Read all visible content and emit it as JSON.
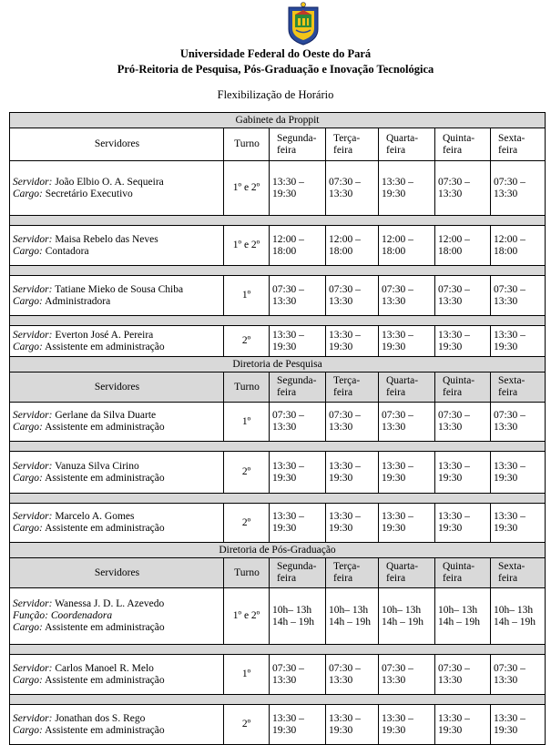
{
  "header": {
    "university": "Universidade Federal do Oeste do Pará",
    "office": "Pró-Reitoria de Pesquisa, Pós-Graduação e Inovação Tecnológica",
    "doc_title": "Flexibilização de Horário"
  },
  "columns": {
    "servers": "Servidores",
    "shift": "Turno",
    "days": [
      [
        "Segunda-",
        "feira"
      ],
      [
        "Terça-",
        "feira"
      ],
      [
        "Quarta-",
        "feira"
      ],
      [
        "Quinta-",
        "feira"
      ],
      [
        "Sexta-",
        "feira"
      ]
    ]
  },
  "sections": [
    {
      "title": "Gabinete da Proppit",
      "staff": [
        {
          "server_label": "Servidor:",
          "name": "João Elbio O. A. Sequeira",
          "role_label": "Cargo:",
          "role": "Secretário Executivo",
          "shift": "1º e 2º",
          "times": [
            [
              "13:30 –",
              "19:30"
            ],
            [
              "07:30 –",
              "13:30"
            ],
            [
              "13:30 –",
              "19:30"
            ],
            [
              "07:30 –",
              "13:30"
            ],
            [
              "07:30 –",
              "13:30"
            ]
          ]
        },
        {
          "server_label": "Servidor:",
          "name": "Maisa Rebelo das Neves",
          "role_label": "Cargo:",
          "role": "Contadora",
          "shift": "1º e 2º",
          "times": [
            [
              "12:00 –",
              "18:00"
            ],
            [
              "12:00 –",
              "18:00"
            ],
            [
              "12:00 –",
              "18:00"
            ],
            [
              "12:00 –",
              "18:00"
            ],
            [
              "12:00 –",
              "18:00"
            ]
          ]
        },
        {
          "server_label": "Servidor:",
          "name": "Tatiane Mieko de Sousa Chiba",
          "role_label": "Cargo:",
          "role": "Administradora",
          "shift": "1º",
          "times": [
            [
              "07:30 –",
              "13:30"
            ],
            [
              "07:30 –",
              "13:30"
            ],
            [
              "07:30 –",
              "13:30"
            ],
            [
              "07:30 –",
              "13:30"
            ],
            [
              "07:30 –",
              "13:30"
            ]
          ]
        },
        {
          "server_label": "Servidor:",
          "name": "Everton José A. Pereira",
          "role_label": "Cargo:",
          "role": "Assistente em administração",
          "shift": "2º",
          "times": [
            [
              "13:30 –",
              "19:30"
            ],
            [
              "13:30 –",
              "19:30"
            ],
            [
              "13:30 –",
              "19:30"
            ],
            [
              "13:30 –",
              "19:30"
            ],
            [
              "13:30 –",
              "19:30"
            ]
          ]
        }
      ]
    },
    {
      "title": "Diretoria de Pesquisa",
      "staff": [
        {
          "server_label": "Servidor:",
          "name": "Gerlane da Silva Duarte",
          "role_label": "Cargo:",
          "role": "Assistente em administração",
          "shift": "1º",
          "times": [
            [
              "07:30 –",
              "13:30"
            ],
            [
              "07:30 –",
              "13:30"
            ],
            [
              "07:30 –",
              "13:30"
            ],
            [
              "07:30 –",
              "13:30"
            ],
            [
              "07:30 –",
              "13:30"
            ]
          ]
        },
        {
          "server_label": "Servidor:",
          "name": "Vanuza Silva Cirino",
          "role_label": "Cargo:",
          "role": "Assistente em administração",
          "shift": "2º",
          "times": [
            [
              "13:30 –",
              "19:30"
            ],
            [
              "13:30 –",
              "19:30"
            ],
            [
              "13:30 –",
              "19:30"
            ],
            [
              "13:30 –",
              "19:30"
            ],
            [
              "13:30 –",
              "19:30"
            ]
          ]
        },
        {
          "server_label": "Servidor:",
          "name": "Marcelo A. Gomes",
          "role_label": "Cargo:",
          "role": "Assistente em administração",
          "shift": "2º",
          "times": [
            [
              "13:30 –",
              "19:30"
            ],
            [
              "13:30 –",
              "19:30"
            ],
            [
              "13:30 –",
              "19:30"
            ],
            [
              "13:30 –",
              "19:30"
            ],
            [
              "13:30 –",
              "19:30"
            ]
          ]
        }
      ]
    },
    {
      "title": "Diretoria de Pós-Graduação",
      "staff": [
        {
          "server_label": "Servidor:",
          "name": "Wanessa J. D. L. Azevedo",
          "function_label": "Função:",
          "function": "Coordenadora",
          "role_label": "Cargo:",
          "role": "Assistente em administração",
          "shift": "1º e 2º",
          "times": [
            [
              "10h– 13h",
              "14h – 19h"
            ],
            [
              "10h– 13h",
              "14h – 19h"
            ],
            [
              "10h– 13h",
              "14h – 19h"
            ],
            [
              "10h– 13h",
              "14h – 19h"
            ],
            [
              "10h– 13h",
              "14h – 19h"
            ]
          ]
        },
        {
          "server_label": "Servidor:",
          "name": "Carlos Manoel R. Melo",
          "role_label": "Cargo:",
          "role": "Assistente em administração",
          "shift": "1º",
          "times": [
            [
              "07:30 –",
              "13:30"
            ],
            [
              "07:30 –",
              "13:30"
            ],
            [
              "07:30 –",
              "13:30"
            ],
            [
              "07:30 –",
              "13:30"
            ],
            [
              "07:30 –",
              "13:30"
            ]
          ]
        },
        {
          "server_label": "Servidor:",
          "name": "Jonathan dos S. Rego",
          "role_label": "Cargo:",
          "role": "Assistente em administração",
          "shift": "2º",
          "times": [
            [
              "13:30 –",
              "19:30"
            ],
            [
              "13:30 –",
              "19:30"
            ],
            [
              "13:30 –",
              "19:30"
            ],
            [
              "13:30 –",
              "19:30"
            ],
            [
              "13:30 –",
              "19:30"
            ]
          ]
        }
      ]
    }
  ]
}
